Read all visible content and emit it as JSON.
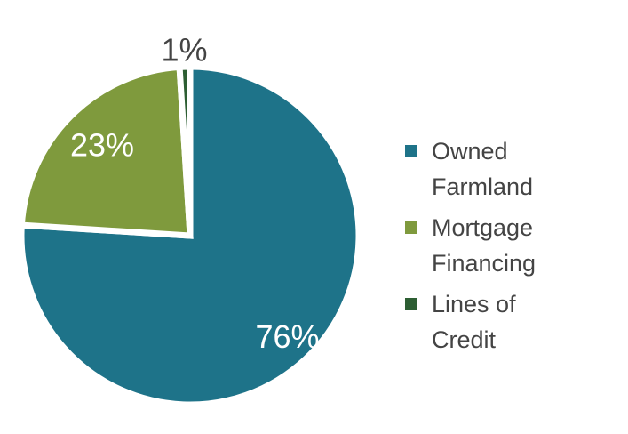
{
  "chart_data": {
    "type": "pie",
    "categories": [
      "Owned Farmland",
      "Mortgage Financing",
      "Lines of Credit"
    ],
    "values": [
      76,
      23,
      1
    ],
    "value_labels": [
      "76%",
      "23%",
      "1%"
    ],
    "colors": [
      "#1e7389",
      "#7f9a3d",
      "#2d5e33"
    ],
    "legend": "right"
  }
}
